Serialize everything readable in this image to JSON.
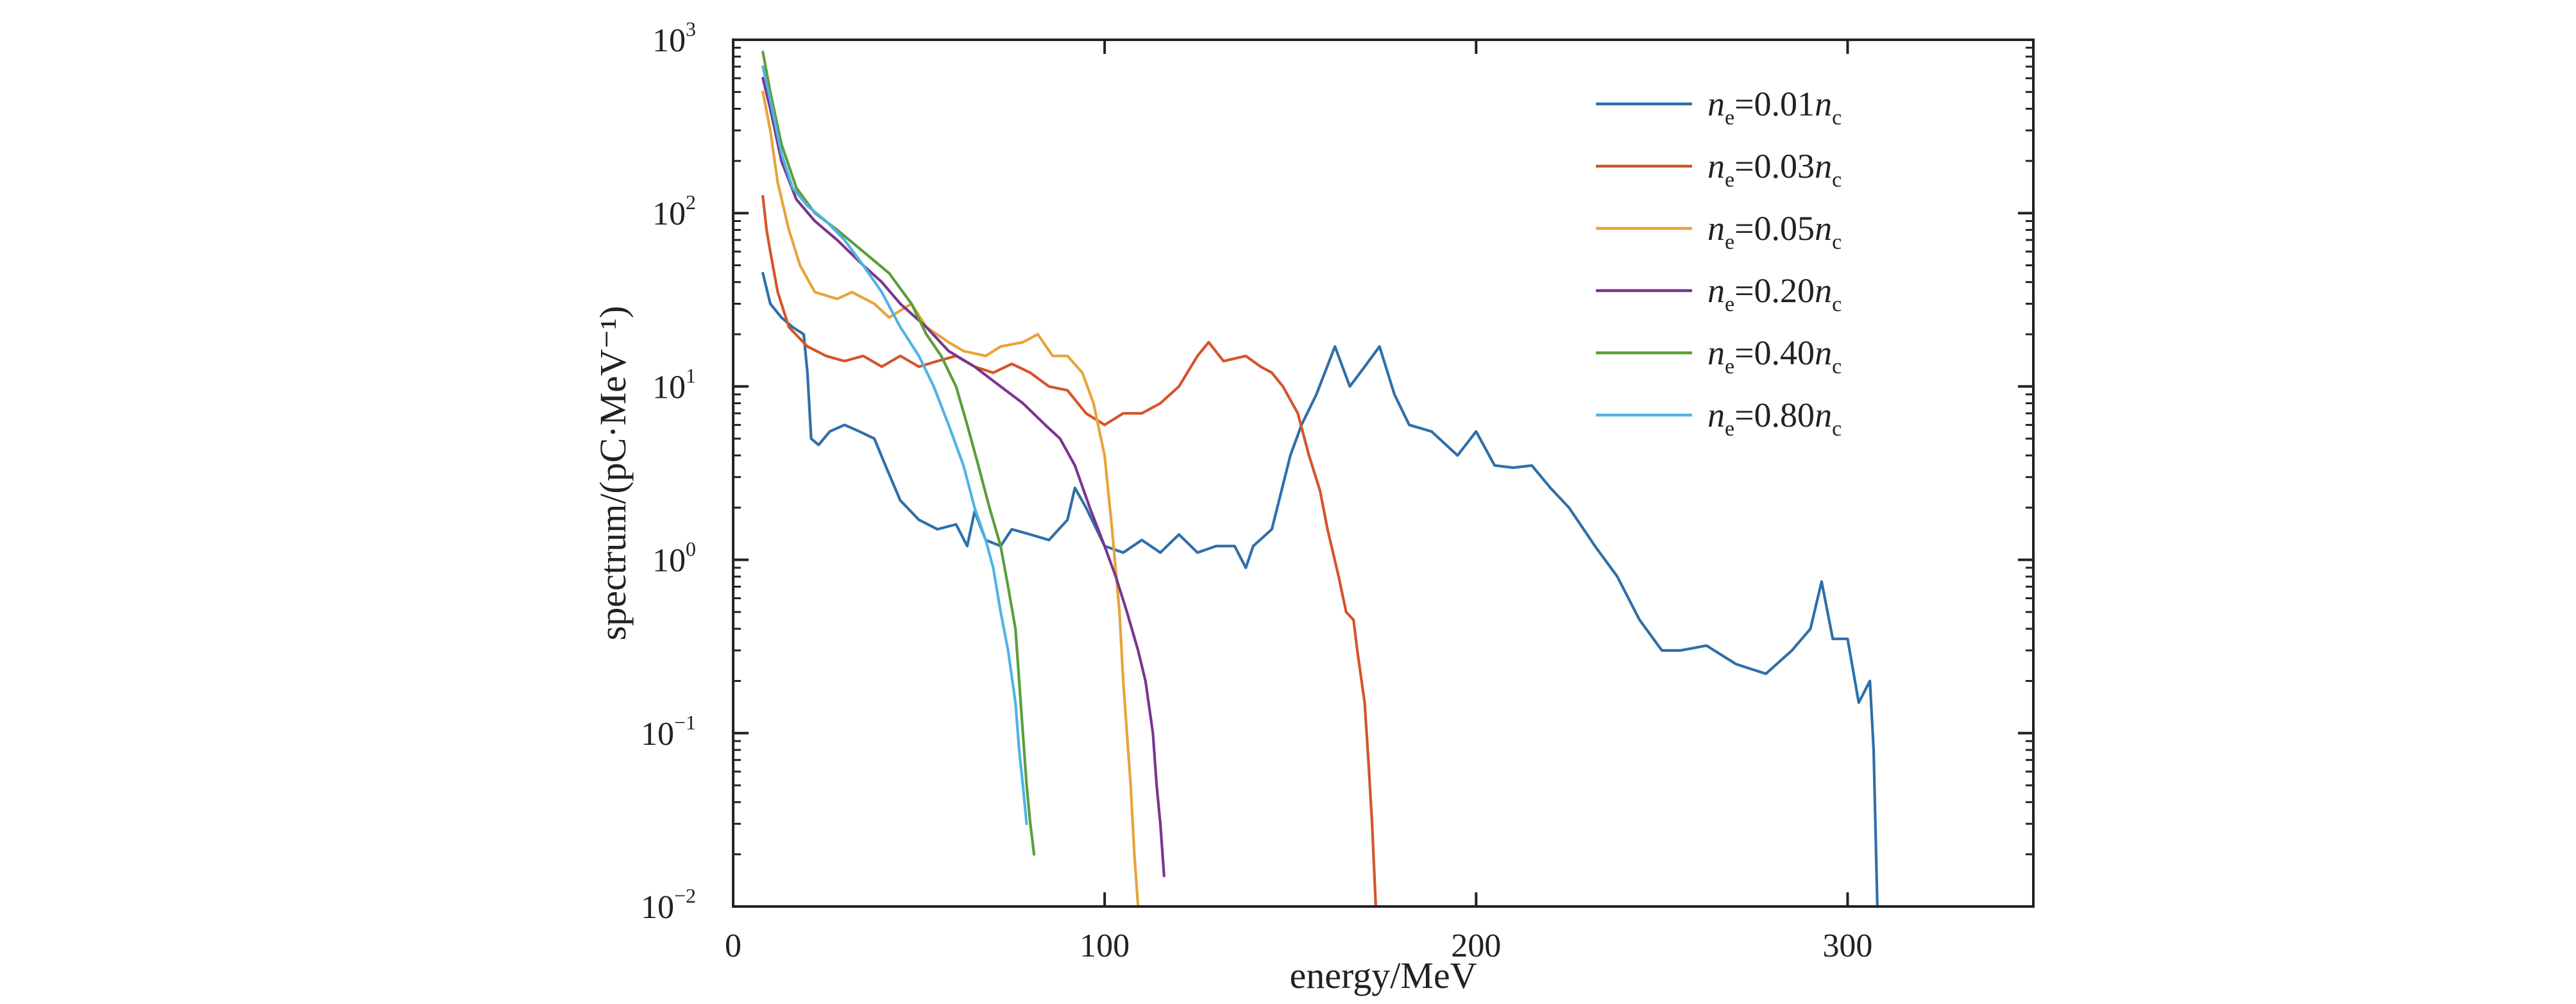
{
  "chart_data": {
    "type": "line",
    "xlabel": "energy/MeV",
    "ylabel": "spectrum/(pC·MeV⁻¹)",
    "xlim": [
      0,
      350
    ],
    "ylim": [
      0.01,
      1000
    ],
    "yscale": "log",
    "xticks": [
      0,
      100,
      200,
      300
    ],
    "yticks": [
      {
        "base": "10",
        "exp": "3",
        "value": 1000
      },
      {
        "base": "10",
        "exp": "2",
        "value": 100
      },
      {
        "base": "10",
        "exp": "1",
        "value": 10
      },
      {
        "base": "10",
        "exp": "0",
        "value": 1
      },
      {
        "base": "10",
        "exp": "−1",
        "value": 0.1
      },
      {
        "base": "10",
        "exp": "−2",
        "value": 0.01
      }
    ],
    "grid": false,
    "legend_position": "top-right",
    "series": [
      {
        "name": "ne=0.01nc",
        "legend": {
          "n1": "n",
          "sub1": "e",
          "mid": "=0.01",
          "n2": "n",
          "sub2": "c"
        },
        "color": "#2f6fa8",
        "points": [
          [
            8,
            45
          ],
          [
            10,
            30
          ],
          [
            13,
            25
          ],
          [
            16,
            22
          ],
          [
            19,
            20
          ],
          [
            20,
            12
          ],
          [
            21,
            5
          ],
          [
            23,
            4.6
          ],
          [
            26,
            5.5
          ],
          [
            30,
            6
          ],
          [
            34,
            5.5
          ],
          [
            38,
            5
          ],
          [
            41,
            3.5
          ],
          [
            45,
            2.2
          ],
          [
            50,
            1.7
          ],
          [
            55,
            1.5
          ],
          [
            60,
            1.6
          ],
          [
            63,
            1.2
          ],
          [
            65,
            1.9
          ],
          [
            68,
            1.3
          ],
          [
            72,
            1.2
          ],
          [
            75,
            1.5
          ],
          [
            80,
            1.4
          ],
          [
            85,
            1.3
          ],
          [
            90,
            1.7
          ],
          [
            92,
            2.6
          ],
          [
            95,
            2
          ],
          [
            100,
            1.2
          ],
          [
            105,
            1.1
          ],
          [
            110,
            1.3
          ],
          [
            115,
            1.1
          ],
          [
            120,
            1.4
          ],
          [
            125,
            1.1
          ],
          [
            130,
            1.2
          ],
          [
            135,
            1.2
          ],
          [
            138,
            0.9
          ],
          [
            140,
            1.2
          ],
          [
            145,
            1.5
          ],
          [
            150,
            4
          ],
          [
            153,
            6
          ],
          [
            157,
            9
          ],
          [
            162,
            17
          ],
          [
            166,
            10
          ],
          [
            170,
            13
          ],
          [
            174,
            17
          ],
          [
            178,
            9
          ],
          [
            182,
            6
          ],
          [
            188,
            5.5
          ],
          [
            195,
            4
          ],
          [
            200,
            5.5
          ],
          [
            205,
            3.5
          ],
          [
            210,
            3.4
          ],
          [
            215,
            3.5
          ],
          [
            220,
            2.6
          ],
          [
            225,
            2
          ],
          [
            232,
            1.2
          ],
          [
            238,
            0.8
          ],
          [
            244,
            0.45
          ],
          [
            250,
            0.3
          ],
          [
            255,
            0.3
          ],
          [
            262,
            0.32
          ],
          [
            270,
            0.25
          ],
          [
            278,
            0.22
          ],
          [
            285,
            0.3
          ],
          [
            290,
            0.4
          ],
          [
            293,
            0.75
          ],
          [
            296,
            0.35
          ],
          [
            300,
            0.35
          ],
          [
            303,
            0.15
          ],
          [
            306,
            0.2
          ],
          [
            307,
            0.08
          ],
          [
            308,
            0.01
          ]
        ]
      },
      {
        "name": "ne=0.03nc",
        "legend": {
          "n1": "n",
          "sub1": "e",
          "mid": "=0.03",
          "n2": "n",
          "sub2": "c"
        },
        "color": "#d4552a",
        "points": [
          [
            8,
            125
          ],
          [
            9,
            80
          ],
          [
            10,
            60
          ],
          [
            12,
            35
          ],
          [
            15,
            22
          ],
          [
            20,
            17
          ],
          [
            25,
            15
          ],
          [
            30,
            14
          ],
          [
            35,
            15
          ],
          [
            40,
            13
          ],
          [
            45,
            15
          ],
          [
            50,
            13
          ],
          [
            55,
            14
          ],
          [
            60,
            15
          ],
          [
            65,
            13
          ],
          [
            70,
            12
          ],
          [
            75,
            13.5
          ],
          [
            80,
            12
          ],
          [
            85,
            10
          ],
          [
            90,
            9.5
          ],
          [
            95,
            7
          ],
          [
            100,
            6
          ],
          [
            105,
            7
          ],
          [
            110,
            7
          ],
          [
            115,
            8
          ],
          [
            120,
            10
          ],
          [
            125,
            15
          ],
          [
            128,
            18
          ],
          [
            132,
            14
          ],
          [
            138,
            15
          ],
          [
            142,
            13
          ],
          [
            145,
            12
          ],
          [
            148,
            10
          ],
          [
            152,
            7
          ],
          [
            155,
            4
          ],
          [
            158,
            2.5
          ],
          [
            160,
            1.5
          ],
          [
            163,
            0.8
          ],
          [
            165,
            0.5
          ],
          [
            167,
            0.45
          ],
          [
            168,
            0.3
          ],
          [
            170,
            0.15
          ],
          [
            171,
            0.07
          ],
          [
            172,
            0.03
          ],
          [
            173,
            0.01
          ]
        ]
      },
      {
        "name": "ne=0.05nc",
        "legend": {
          "n1": "n",
          "sub1": "e",
          "mid": "=0.05",
          "n2": "n",
          "sub2": "c"
        },
        "color": "#e8a33a",
        "points": [
          [
            8,
            500
          ],
          [
            10,
            300
          ],
          [
            12,
            150
          ],
          [
            15,
            80
          ],
          [
            18,
            50
          ],
          [
            22,
            35
          ],
          [
            28,
            32
          ],
          [
            32,
            35
          ],
          [
            38,
            30
          ],
          [
            42,
            25
          ],
          [
            48,
            30
          ],
          [
            52,
            22
          ],
          [
            58,
            18
          ],
          [
            62,
            16
          ],
          [
            68,
            15
          ],
          [
            72,
            17
          ],
          [
            78,
            18
          ],
          [
            82,
            20
          ],
          [
            86,
            15
          ],
          [
            90,
            15
          ],
          [
            94,
            12
          ],
          [
            97,
            8
          ],
          [
            100,
            4
          ],
          [
            102,
            1.5
          ],
          [
            104,
            0.5
          ],
          [
            105,
            0.2
          ],
          [
            107,
            0.05
          ],
          [
            108,
            0.02
          ],
          [
            109,
            0.01
          ]
        ]
      },
      {
        "name": "ne=0.20nc",
        "legend": {
          "n1": "n",
          "sub1": "e",
          "mid": "=0.20",
          "n2": "n",
          "sub2": "c"
        },
        "color": "#7a3590",
        "points": [
          [
            8,
            600
          ],
          [
            10,
            400
          ],
          [
            13,
            200
          ],
          [
            17,
            120
          ],
          [
            22,
            90
          ],
          [
            28,
            70
          ],
          [
            35,
            50
          ],
          [
            40,
            40
          ],
          [
            45,
            30
          ],
          [
            52,
            22
          ],
          [
            58,
            16
          ],
          [
            65,
            13
          ],
          [
            72,
            10
          ],
          [
            78,
            8
          ],
          [
            84,
            6
          ],
          [
            88,
            5
          ],
          [
            92,
            3.5
          ],
          [
            96,
            2
          ],
          [
            100,
            1.2
          ],
          [
            103,
            0.8
          ],
          [
            106,
            0.5
          ],
          [
            109,
            0.3
          ],
          [
            111,
            0.2
          ],
          [
            113,
            0.1
          ],
          [
            114,
            0.05
          ],
          [
            115,
            0.03
          ],
          [
            116,
            0.015
          ]
        ]
      },
      {
        "name": "ne=0.40nc",
        "legend": {
          "n1": "n",
          "sub1": "e",
          "mid": "=0.40",
          "n2": "n",
          "sub2": "c"
        },
        "color": "#5a9e3a",
        "points": [
          [
            8,
            850
          ],
          [
            10,
            500
          ],
          [
            13,
            250
          ],
          [
            17,
            140
          ],
          [
            22,
            100
          ],
          [
            28,
            80
          ],
          [
            35,
            60
          ],
          [
            42,
            45
          ],
          [
            48,
            30
          ],
          [
            52,
            20
          ],
          [
            56,
            15
          ],
          [
            60,
            10
          ],
          [
            63,
            6
          ],
          [
            66,
            3.5
          ],
          [
            69,
            2
          ],
          [
            72,
            1.2
          ],
          [
            74,
            0.7
          ],
          [
            76,
            0.4
          ],
          [
            77,
            0.2
          ],
          [
            78,
            0.1
          ],
          [
            79,
            0.05
          ],
          [
            80,
            0.03
          ],
          [
            81,
            0.02
          ]
        ]
      },
      {
        "name": "ne=0.80nc",
        "legend": {
          "n1": "n",
          "sub1": "e",
          "mid": "=0.80",
          "n2": "n",
          "sub2": "c"
        },
        "color": "#4fb3e3",
        "points": [
          [
            8,
            700
          ],
          [
            10,
            450
          ],
          [
            13,
            220
          ],
          [
            16,
            140
          ],
          [
            20,
            110
          ],
          [
            25,
            90
          ],
          [
            30,
            70
          ],
          [
            35,
            50
          ],
          [
            40,
            35
          ],
          [
            45,
            22
          ],
          [
            50,
            15
          ],
          [
            54,
            10
          ],
          [
            58,
            6
          ],
          [
            62,
            3.5
          ],
          [
            65,
            2
          ],
          [
            68,
            1.3
          ],
          [
            70,
            0.9
          ],
          [
            72,
            0.5
          ],
          [
            74,
            0.3
          ],
          [
            76,
            0.15
          ],
          [
            77,
            0.08
          ],
          [
            78,
            0.05
          ],
          [
            79,
            0.03
          ]
        ]
      }
    ]
  }
}
